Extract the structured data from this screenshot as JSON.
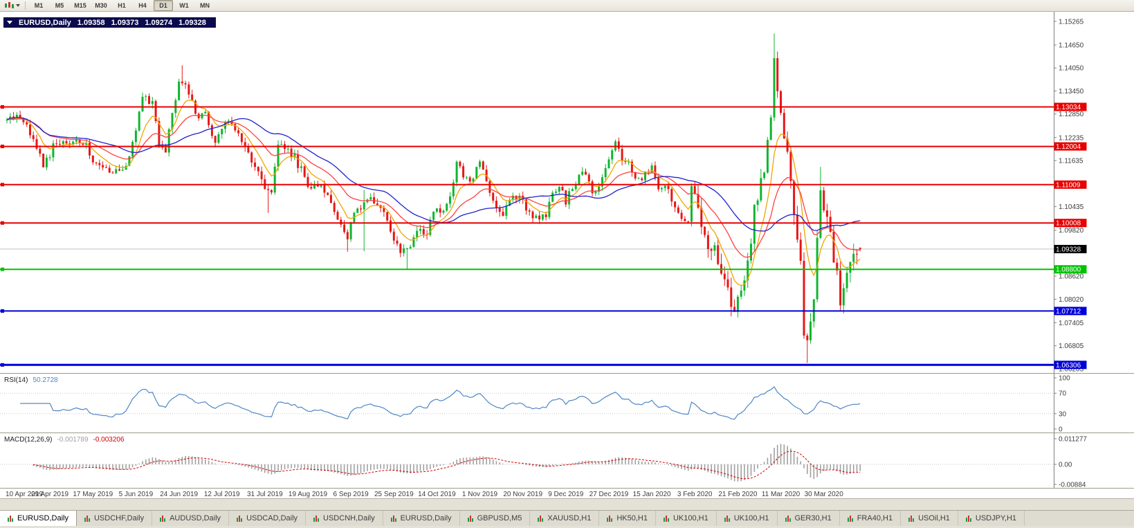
{
  "toolbar": {
    "timeframes": [
      {
        "label": "M1",
        "active": false
      },
      {
        "label": "M5",
        "active": false
      },
      {
        "label": "M15",
        "active": false
      },
      {
        "label": "M30",
        "active": false
      },
      {
        "label": "H1",
        "active": false
      },
      {
        "label": "H4",
        "active": false
      },
      {
        "label": "D1",
        "active": true
      },
      {
        "label": "W1",
        "active": false
      },
      {
        "label": "MN",
        "active": false
      }
    ]
  },
  "chart_header": {
    "symbol": "EURUSD,Daily",
    "open": "1.09358",
    "high": "1.09373",
    "low": "1.09274",
    "close": "1.09328"
  },
  "price_axis": {
    "ticks": [
      "1.15265",
      "1.14650",
      "1.14050",
      "1.13450",
      "1.12850",
      "1.12235",
      "1.11635",
      "1.10435",
      "1.09820",
      "1.08620",
      "1.08020",
      "1.07405",
      "1.06805",
      "1.06205"
    ],
    "current_price": {
      "label": "1.09328",
      "value": 1.09328,
      "bg": "#000000",
      "fg": "#ffffff"
    }
  },
  "hlines": [
    {
      "price": 1.13034,
      "label": "1.13034",
      "color": "#e80000",
      "width": 2
    },
    {
      "price": 1.12004,
      "label": "1.12004",
      "color": "#e80000",
      "width": 2
    },
    {
      "price": 1.11009,
      "label": "1.11009",
      "color": "#e80000",
      "width": 2
    },
    {
      "price": 1.10008,
      "label": "1.10008",
      "color": "#e80000",
      "width": 2
    },
    {
      "price": 1.088,
      "label": "1.08800",
      "color": "#00c400",
      "width": 2
    },
    {
      "price": 1.07712,
      "label": "1.07712",
      "color": "#0000d8",
      "width": 2
    },
    {
      "price": 1.06306,
      "label": "1.06306",
      "color": "#0000d8",
      "width": 3
    }
  ],
  "indicators": {
    "rsi": {
      "name": "RSI(14)",
      "value": "50.2728",
      "color": "#4f86c6",
      "levels": [
        100,
        70,
        30,
        0
      ]
    },
    "macd": {
      "name": "MACD(12,26,9)",
      "main_value": "-0.001789",
      "signal_value": "-0.003206",
      "hist_color": "#a0a0a0",
      "signal_color": "#d40000",
      "axis": [
        {
          "label": "0.011277",
          "value": 0.011277
        },
        {
          "label": "0.00",
          "value": 0
        },
        {
          "label": "-0.00884",
          "value": -0.00884
        }
      ]
    }
  },
  "time_axis": {
    "labels": [
      [
        "10 Apr 2019",
        0
      ],
      [
        "29 Apr 2019",
        13
      ],
      [
        "17 May 2019",
        26
      ],
      [
        "5 Jun 2019",
        39
      ],
      [
        "24 Jun 2019",
        52
      ],
      [
        "12 Jul 2019",
        65
      ],
      [
        "31 Jul 2019",
        78
      ],
      [
        "19 Aug 2019",
        91
      ],
      [
        "6 Sep 2019",
        104
      ],
      [
        "25 Sep 2019",
        117
      ],
      [
        "14 Oct 2019",
        130
      ],
      [
        "1 Nov 2019",
        143
      ],
      [
        "20 Nov 2019",
        156
      ],
      [
        "9 Dec 2019",
        169
      ],
      [
        "27 Dec 2019",
        182
      ],
      [
        "15 Jan 2020",
        195
      ],
      [
        "3 Feb 2020",
        208
      ],
      [
        "21 Feb 2020",
        221
      ],
      [
        "11 Mar 2020",
        234
      ],
      [
        "30 Mar 2020",
        247
      ]
    ]
  },
  "tabs": [
    {
      "label": "EURUSD,Daily",
      "active": true
    },
    {
      "label": "USDCHF,Daily",
      "active": false
    },
    {
      "label": "AUDUSD,Daily",
      "active": false
    },
    {
      "label": "USDCAD,Daily",
      "active": false
    },
    {
      "label": "USDCNH,Daily",
      "active": false
    },
    {
      "label": "EURUSD,Daily",
      "active": false
    },
    {
      "label": "GBPUSD,M5",
      "active": false
    },
    {
      "label": "XAUUSD,H1",
      "active": false
    },
    {
      "label": "HK50,H1",
      "active": false
    },
    {
      "label": "UK100,H1",
      "active": false
    },
    {
      "label": "UK100,H1",
      "active": false
    },
    {
      "label": "GER30,H1",
      "active": false
    },
    {
      "label": "FRA40,H1",
      "active": false
    },
    {
      "label": "USOil,H1",
      "active": false
    },
    {
      "label": "USDJPY,H1",
      "active": false
    }
  ],
  "chart_data": {
    "type": "candlestick",
    "symbol": "EURUSD",
    "timeframe": "Daily",
    "bars_total": 259,
    "ylim": [
      1.0585,
      1.1539
    ],
    "colors": {
      "up": "#0fb52f",
      "down": "#e61717",
      "ma_fast": "#f0a500",
      "ma_mid": "#ff4040",
      "ma_slow": "#2020cc",
      "bid_line": "#c0c0c0"
    },
    "moving_averages": [
      {
        "type": "ema",
        "period": 8,
        "color_key": "ma_fast"
      },
      {
        "type": "ema",
        "period": 21,
        "color_key": "ma_mid"
      },
      {
        "type": "sma",
        "period": 34,
        "color_key": "ma_slow"
      }
    ],
    "close_path": [
      [
        0,
        1.127
      ],
      [
        3,
        1.1285
      ],
      [
        7,
        1.124
      ],
      [
        11,
        1.115
      ],
      [
        13,
        1.118
      ],
      [
        15,
        1.1215
      ],
      [
        18,
        1.12
      ],
      [
        21,
        1.122
      ],
      [
        24,
        1.1205
      ],
      [
        26,
        1.116
      ],
      [
        30,
        1.1155
      ],
      [
        32,
        1.113
      ],
      [
        35,
        1.1135
      ],
      [
        37,
        1.1165
      ],
      [
        39,
        1.125
      ],
      [
        41,
        1.1335
      ],
      [
        44,
        1.131
      ],
      [
        46,
        1.121
      ],
      [
        48,
        1.1195
      ],
      [
        50,
        1.128
      ],
      [
        52,
        1.137
      ],
      [
        54,
        1.1365
      ],
      [
        57,
        1.1285
      ],
      [
        60,
        1.128
      ],
      [
        63,
        1.121
      ],
      [
        65,
        1.125
      ],
      [
        67,
        1.127
      ],
      [
        70,
        1.1225
      ],
      [
        73,
        1.118
      ],
      [
        76,
        1.114
      ],
      [
        78,
        1.108
      ],
      [
        80,
        1.1085
      ],
      [
        82,
        1.1205
      ],
      [
        84,
        1.12
      ],
      [
        87,
        1.117
      ],
      [
        89,
        1.114
      ],
      [
        91,
        1.11
      ],
      [
        93,
        1.1095
      ],
      [
        96,
        1.109
      ],
      [
        99,
        1.104
      ],
      [
        101,
        1.099
      ],
      [
        103,
        1.0965
      ],
      [
        105,
        1.1035
      ],
      [
        108,
        1.105
      ],
      [
        110,
        1.107
      ],
      [
        113,
        1.104
      ],
      [
        115,
        1.1015
      ],
      [
        117,
        1.096
      ],
      [
        119,
        1.092
      ],
      [
        121,
        1.093
      ],
      [
        123,
        1.0965
      ],
      [
        125,
        1.098
      ],
      [
        127,
        1.097
      ],
      [
        129,
        1.1035
      ],
      [
        132,
        1.103
      ],
      [
        134,
        1.1075
      ],
      [
        136,
        1.115
      ],
      [
        138,
        1.113
      ],
      [
        140,
        1.1105
      ],
      [
        142,
        1.115
      ],
      [
        143,
        1.1165
      ],
      [
        146,
        1.107
      ],
      [
        149,
        1.102
      ],
      [
        151,
        1.1035
      ],
      [
        153,
        1.1075
      ],
      [
        156,
        1.106
      ],
      [
        158,
        1.1025
      ],
      [
        161,
        1.101
      ],
      [
        163,
        1.102
      ],
      [
        165,
        1.108
      ],
      [
        167,
        1.11
      ],
      [
        169,
        1.106
      ],
      [
        171,
        1.109
      ],
      [
        173,
        1.1125
      ],
      [
        174,
        1.1145
      ],
      [
        177,
        1.108
      ],
      [
        180,
        1.112
      ],
      [
        182,
        1.1177
      ],
      [
        184,
        1.121
      ],
      [
        186,
        1.117
      ],
      [
        188,
        1.116
      ],
      [
        190,
        1.112
      ],
      [
        192,
        1.112
      ],
      [
        195,
        1.115
      ],
      [
        197,
        1.1095
      ],
      [
        200,
        1.1085
      ],
      [
        203,
        1.102
      ],
      [
        206,
        1.1
      ],
      [
        207,
        1.1093
      ],
      [
        208,
        1.106
      ],
      [
        210,
        1.1
      ],
      [
        212,
        1.0945
      ],
      [
        215,
        1.091
      ],
      [
        217,
        1.084
      ],
      [
        219,
        1.0795
      ],
      [
        220,
        1.0785
      ],
      [
        221,
        1.0805
      ],
      [
        224,
        1.088
      ],
      [
        226,
        1.1025
      ],
      [
        229,
        1.1135
      ],
      [
        231,
        1.1285
      ],
      [
        232,
        1.145
      ],
      [
        234,
        1.128
      ],
      [
        236,
        1.118
      ],
      [
        238,
        1.101
      ],
      [
        240,
        1.088
      ],
      [
        241,
        1.07
      ],
      [
        242,
        1.069
      ],
      [
        244,
        1.079
      ],
      [
        246,
        1.109
      ],
      [
        247,
        1.104
      ],
      [
        248,
        1.103
      ],
      [
        250,
        1.092
      ],
      [
        252,
        1.08
      ],
      [
        254,
        1.087
      ],
      [
        256,
        1.092
      ],
      [
        258,
        1.09328
      ]
    ],
    "wick_overrides": {
      "53": {
        "high": 1.1412
      },
      "79": {
        "low": 1.1027
      },
      "103": {
        "low": 1.0926
      },
      "108": {
        "low": 1.0927,
        "high": 1.1087
      },
      "121": {
        "low": 1.0879
      },
      "220": {
        "low": 1.0778
      },
      "232": {
        "high": 1.1495
      },
      "242": {
        "low": 1.0636
      },
      "246": {
        "high": 1.1147
      },
      "252": {
        "low": 1.077
      }
    },
    "last_bar": {
      "open": 1.09358,
      "high": 1.09373,
      "low": 1.09274,
      "close": 1.09328
    }
  }
}
